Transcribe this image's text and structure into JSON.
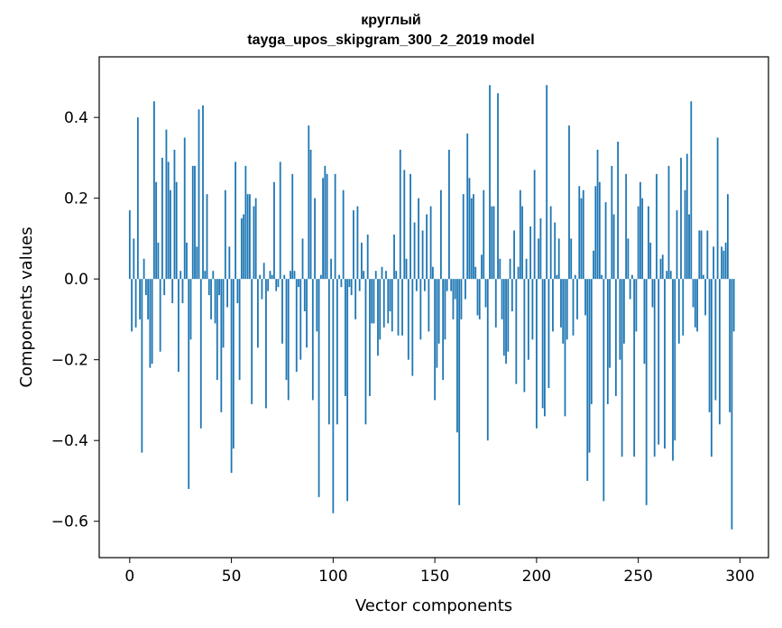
{
  "chart_data": {
    "type": "bar",
    "title": "круглый",
    "subtitle": "tayga_upos_skipgram_300_2_2019 model",
    "xlabel": "Vector components",
    "ylabel": "Components values",
    "xlim": [
      -15,
      314
    ],
    "ylim": [
      -0.69,
      0.55
    ],
    "xticks": [
      0,
      50,
      100,
      150,
      200,
      250,
      300
    ],
    "yticks": [
      -0.6,
      -0.4,
      -0.2,
      0.0,
      0.2,
      0.4
    ],
    "ytick_labels": [
      "−0.6",
      "−0.4",
      "−0.2",
      "0.0",
      "0.2",
      "0.4"
    ],
    "grid": false,
    "bar_color": "#1f77b4",
    "x": "0..299",
    "values": [
      0.17,
      -0.13,
      0.1,
      -0.12,
      0.4,
      -0.1,
      -0.43,
      0.05,
      -0.04,
      -0.1,
      -0.22,
      -0.21,
      0.44,
      0.24,
      0.09,
      -0.18,
      0.3,
      -0.04,
      0.37,
      0.29,
      0.22,
      -0.06,
      0.32,
      0.24,
      -0.23,
      0.02,
      -0.06,
      0.35,
      0.09,
      -0.52,
      -0.15,
      0.28,
      0.28,
      0.08,
      0.42,
      -0.37,
      0.43,
      0.02,
      0.21,
      -0.04,
      -0.1,
      0.02,
      -0.11,
      -0.25,
      -0.04,
      -0.33,
      -0.17,
      0.22,
      -0.07,
      0.08,
      -0.48,
      -0.42,
      0.29,
      -0.06,
      -0.25,
      0.15,
      0.16,
      0.28,
      0.21,
      0.21,
      -0.31,
      0.18,
      0.2,
      -0.17,
      0.01,
      -0.05,
      0.04,
      -0.32,
      -0.03,
      0.02,
      0.01,
      0.24,
      -0.03,
      -0.02,
      0.29,
      -0.16,
      0.01,
      -0.25,
      -0.3,
      0.02,
      0.26,
      0.02,
      -0.23,
      -0.02,
      -0.2,
      0.1,
      -0.08,
      -0.17,
      0.38,
      0.32,
      -0.3,
      0.2,
      -0.13,
      -0.54,
      0.01,
      0.25,
      0.28,
      0.26,
      -0.36,
      0.05,
      -0.58,
      0.26,
      -0.36,
      0.01,
      -0.02,
      0.22,
      -0.29,
      -0.55,
      -0.02,
      -0.04,
      0.17,
      -0.1,
      0.18,
      -0.03,
      0.09,
      0.02,
      -0.36,
      0.11,
      -0.29,
      -0.11,
      -0.11,
      0.02,
      -0.19,
      -0.15,
      0.03,
      -0.12,
      0.02,
      -0.11,
      -0.08,
      -0.13,
      0.11,
      0.02,
      -0.14,
      0.32,
      -0.14,
      0.27,
      0.05,
      -0.2,
      0.26,
      -0.24,
      0.14,
      -0.03,
      0.2,
      -0.15,
      0.12,
      -0.03,
      0.16,
      -0.13,
      0.18,
      0.03,
      -0.3,
      -0.22,
      -0.16,
      0.22,
      -0.25,
      -0.15,
      -0.03,
      0.32,
      -0.03,
      -0.1,
      -0.05,
      -0.38,
      -0.56,
      -0.1,
      0.21,
      -0.05,
      0.36,
      0.25,
      0.2,
      0.21,
      0.03,
      -0.09,
      -0.1,
      0.06,
      0.22,
      -0.07,
      -0.4,
      0.48,
      0.18,
      0.18,
      -0.12,
      0.46,
      0.05,
      -0.1,
      -0.19,
      -0.21,
      -0.18,
      0.05,
      -0.08,
      0.12,
      -0.26,
      0.03,
      0.22,
      0.18,
      -0.28,
      0.05,
      -0.2,
      0.13,
      -0.15,
      0.27,
      -0.37,
      0.1,
      0.15,
      -0.32,
      -0.34,
      0.48,
      -0.27,
      0.18,
      -0.13,
      0.14,
      0.01,
      0.1,
      -0.12,
      -0.16,
      -0.34,
      -0.15,
      0.38,
      0.1,
      -0.14,
      0.01,
      -0.1,
      0.23,
      0.2,
      0.22,
      -0.09,
      -0.5,
      -0.43,
      -0.31,
      0.07,
      0.23,
      0.32,
      0.24,
      0.01,
      -0.55,
      0.19,
      -0.31,
      -0.22,
      0.28,
      0.16,
      -0.29,
      0.34,
      -0.2,
      -0.44,
      -0.16,
      0.26,
      0.1,
      -0.05,
      0.01,
      -0.44,
      -0.13,
      0.18,
      0.24,
      0.2,
      -0.21,
      -0.56,
      0.18,
      0.09,
      -0.07,
      -0.44,
      0.26,
      -0.41,
      0.05,
      0.06,
      -0.42,
      0.02,
      0.28,
      0.02,
      -0.45,
      -0.4,
      0.17,
      -0.16,
      0.3,
      -0.14,
      0.22,
      0.31,
      0.16,
      0.44,
      -0.07,
      -0.12,
      -0.13,
      0.12,
      0.12,
      0.01,
      -0.09,
      0.12,
      -0.33,
      -0.44,
      0.08,
      -0.3,
      0.35,
      -0.36,
      0.08,
      0.07,
      0.09,
      0.21,
      -0.33,
      -0.62,
      -0.13
    ]
  }
}
